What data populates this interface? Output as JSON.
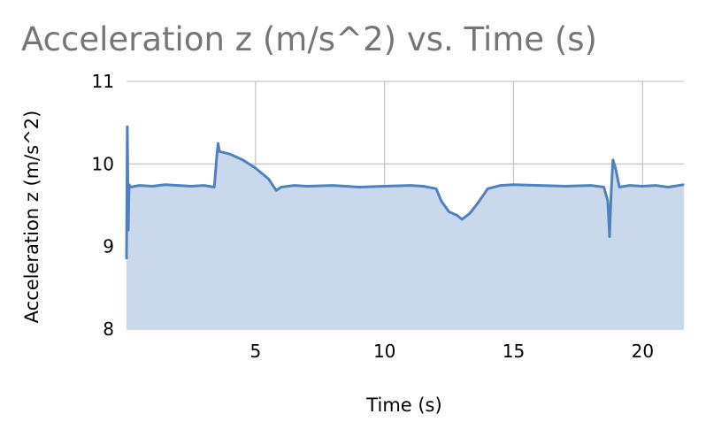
{
  "chart_data": {
    "type": "area",
    "title": "Acceleration z (m/s^2) vs. Time (s)",
    "xlabel": "Time (s)",
    "ylabel": "Acceleration z (m/s^2)",
    "xlim": [
      0,
      21.6
    ],
    "ylim": [
      8,
      11
    ],
    "xticks": [
      5,
      10,
      15,
      20
    ],
    "xtick_labels": [
      "5",
      "10",
      "15",
      "20"
    ],
    "yticks": [
      8,
      9,
      10,
      11
    ],
    "ytick_labels": [
      "8",
      "9",
      "10",
      "11"
    ],
    "grid": true,
    "legend": "none",
    "colors": {
      "line": "#4f81bd",
      "fill": "#cad8ec",
      "grid": "#c8c8c8",
      "title": "#767676"
    },
    "series": [
      {
        "x": [
          0,
          0.03,
          0.07,
          0.1,
          0.15,
          0.5,
          1,
          1.5,
          2,
          2.5,
          3,
          3.4,
          3.5,
          3.55,
          3.6,
          4,
          4.5,
          5,
          5.5,
          5.8,
          6,
          6.5,
          7,
          8,
          9,
          10,
          11,
          11.5,
          12,
          12.2,
          12.5,
          12.8,
          13,
          13.3,
          13.6,
          14,
          14.5,
          15,
          16,
          17,
          18,
          18.5,
          18.65,
          18.72,
          18.78,
          18.85,
          18.95,
          19.1,
          19.5,
          20,
          20.5,
          21,
          21.6
        ],
        "y": [
          8.85,
          10.45,
          9.2,
          9.75,
          9.72,
          9.74,
          9.73,
          9.75,
          9.74,
          9.73,
          9.74,
          9.72,
          10.1,
          10.25,
          10.15,
          10.12,
          10.05,
          9.95,
          9.82,
          9.68,
          9.72,
          9.74,
          9.73,
          9.74,
          9.72,
          9.73,
          9.74,
          9.73,
          9.7,
          9.55,
          9.42,
          9.38,
          9.33,
          9.4,
          9.52,
          9.7,
          9.74,
          9.75,
          9.74,
          9.73,
          9.74,
          9.72,
          9.55,
          9.12,
          9.65,
          10.05,
          9.95,
          9.72,
          9.74,
          9.73,
          9.74,
          9.72,
          9.75
        ]
      }
    ]
  }
}
